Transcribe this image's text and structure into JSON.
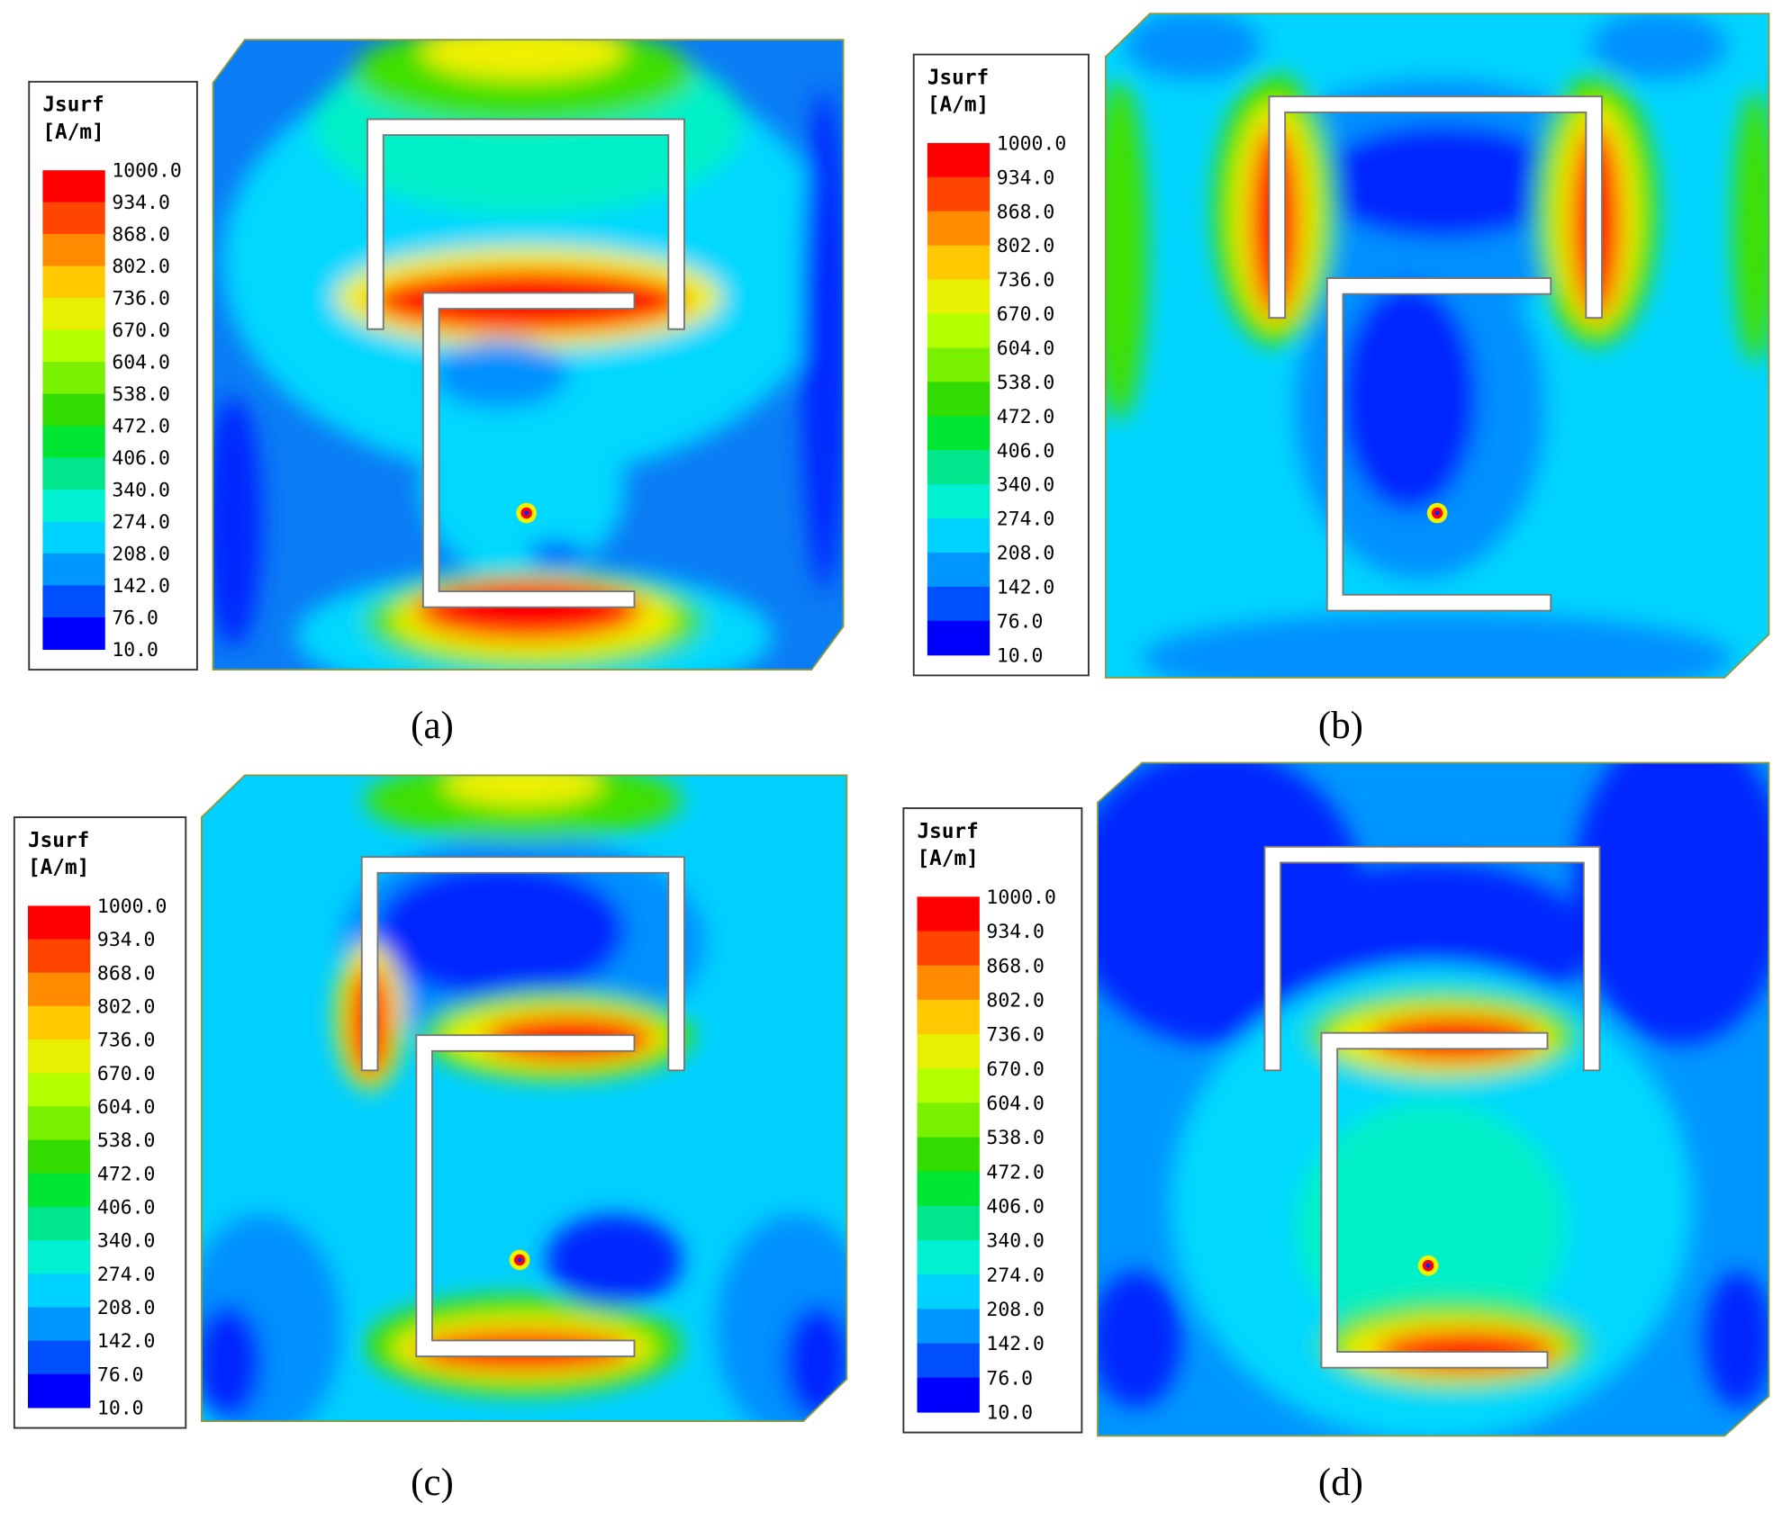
{
  "legend": {
    "title": "Jsurf",
    "unit": "[A/m]",
    "levels": [
      "1000.0",
      "934.0",
      "868.0",
      "802.0",
      "736.0",
      "670.0",
      "604.0",
      "538.0",
      "472.0",
      "406.0",
      "340.0",
      "274.0",
      "208.0",
      "142.0",
      "76.0",
      "10.0"
    ]
  },
  "panels": [
    {
      "caption": "(a)"
    },
    {
      "caption": "(b)"
    },
    {
      "caption": "(c)"
    },
    {
      "caption": "(d)"
    }
  ]
}
